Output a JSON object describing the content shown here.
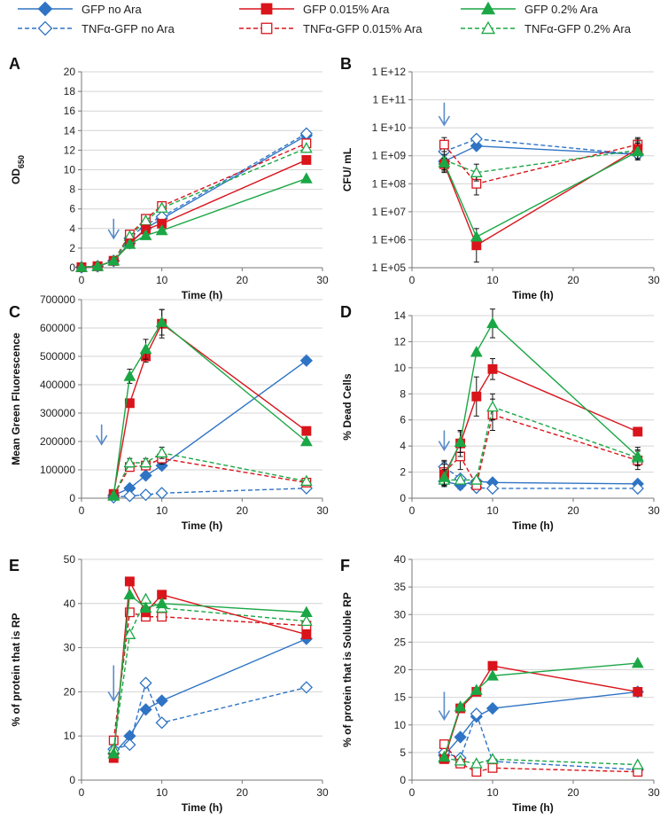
{
  "legend": [
    {
      "name": "GFP no Ara",
      "color": "#2F74C4",
      "marker": "diamond",
      "fill": true,
      "dashed": false
    },
    {
      "name": "GFP 0.015% Ara",
      "color": "#D9141B",
      "marker": "square",
      "fill": true,
      "dashed": false
    },
    {
      "name": "GFP 0.2% Ara",
      "color": "#1BA745",
      "marker": "triangle",
      "fill": true,
      "dashed": false
    },
    {
      "name": "TNFα-GFP no Ara",
      "color": "#2F74C4",
      "marker": "diamond",
      "fill": false,
      "dashed": true
    },
    {
      "name": "TNFα-GFP 0.015% Ara",
      "color": "#D9141B",
      "marker": "square",
      "fill": false,
      "dashed": true
    },
    {
      "name": "TNFα-GFP 0.2% Ara",
      "color": "#1BA745",
      "marker": "triangle",
      "fill": false,
      "dashed": true
    }
  ],
  "chart_data": [
    {
      "panel": "A",
      "type": "line",
      "xlabel": "Time (h)",
      "ylabel": "OD",
      "ylabel_sub": "650",
      "xlim": [
        0,
        30
      ],
      "xticks": [
        "0",
        "10",
        "20",
        "30"
      ],
      "ylim": [
        0,
        20
      ],
      "yticks": [
        "0",
        "2",
        "4",
        "6",
        "8",
        "10",
        "12",
        "14",
        "16",
        "18",
        "20"
      ],
      "arrow_at": {
        "x": 4,
        "y_from": 5,
        "y_to": 3
      },
      "series": [
        {
          "name": "GFP no Ara",
          "x": [
            0,
            2,
            4,
            6,
            8,
            10,
            28
          ],
          "y": [
            0.05,
            0.15,
            0.7,
            2.5,
            4.0,
            5.0,
            13.5
          ]
        },
        {
          "name": "GFP 0.015% Ara",
          "x": [
            0,
            2,
            4,
            6,
            8,
            10,
            28
          ],
          "y": [
            0.05,
            0.15,
            0.7,
            2.5,
            3.9,
            4.5,
            11.0
          ]
        },
        {
          "name": "GFP 0.2% Ara",
          "x": [
            0,
            2,
            4,
            6,
            8,
            10,
            28
          ],
          "y": [
            0.05,
            0.15,
            0.7,
            2.4,
            3.3,
            3.8,
            9.1
          ]
        },
        {
          "name": "TNFα-GFP no Ara",
          "x": [
            0,
            2,
            4,
            6,
            8,
            10,
            28
          ],
          "y": [
            0.05,
            0.15,
            0.7,
            3.0,
            4.4,
            5.2,
            13.7
          ]
        },
        {
          "name": "TNFα-GFP 0.015% Ara",
          "x": [
            0,
            2,
            4,
            6,
            8,
            10,
            28
          ],
          "y": [
            0.05,
            0.15,
            0.7,
            3.4,
            5.0,
            6.3,
            12.7
          ]
        },
        {
          "name": "TNFα-GFP 0.2% Ara",
          "x": [
            0,
            2,
            4,
            6,
            8,
            10,
            28
          ],
          "y": [
            0.05,
            0.15,
            0.7,
            3.2,
            4.8,
            6.1,
            12.2
          ]
        }
      ]
    },
    {
      "panel": "B",
      "type": "line",
      "scale": "log",
      "xlabel": "Time (h)",
      "ylabel": "CFU/ mL",
      "xlim": [
        0,
        30
      ],
      "xticks": [
        "0",
        "10",
        "20",
        "30"
      ],
      "ylim_exp": [
        5,
        12
      ],
      "yticks": [
        "1 E+05",
        "1 E+06",
        "1 E+07",
        "1 E+08",
        "1 E+09",
        "1 E+10",
        "1 E+11",
        "1 E+12"
      ],
      "arrow_at": {
        "x": 4,
        "y_from": 10.9,
        "y_to": 10.1
      },
      "series": [
        {
          "name": "GFP no Ara",
          "x": [
            4,
            8,
            28
          ],
          "y": [
            8.8,
            9.35,
            9.05
          ],
          "err": [
            0.4,
            0,
            0.1
          ]
        },
        {
          "name": "GFP 0.015% Ara",
          "x": [
            4,
            8,
            28
          ],
          "y": [
            8.7,
            5.8,
            9.25
          ],
          "err": [
            0.2,
            0.6,
            0.35
          ]
        },
        {
          "name": "GFP 0.2% Ara",
          "x": [
            4,
            8,
            28
          ],
          "y": [
            8.75,
            6.1,
            9.15
          ],
          "err": [
            0.3,
            0,
            0.3
          ]
        },
        {
          "name": "TNFα-GFP no Ara",
          "x": [
            4,
            8,
            28
          ],
          "y": [
            9.15,
            9.6,
            9.05
          ],
          "err": [
            0,
            0,
            0
          ]
        },
        {
          "name": "TNFα-GFP 0.015% Ara",
          "x": [
            4,
            8,
            28
          ],
          "y": [
            9.4,
            8.0,
            9.4
          ],
          "err": [
            0.25,
            0.4,
            0.25
          ]
        },
        {
          "name": "TNFα-GFP 0.2% Ara",
          "x": [
            4,
            8,
            28
          ],
          "y": [
            8.85,
            8.4,
            9.2
          ],
          "err": [
            0.3,
            0.3,
            0.3
          ]
        }
      ]
    },
    {
      "panel": "C",
      "type": "line",
      "xlabel": "Time (h)",
      "ylabel": "Mean Green Fluorescence",
      "xlim": [
        0,
        30
      ],
      "xticks": [
        "0",
        "10",
        "20",
        "30"
      ],
      "ylim": [
        0,
        700000
      ],
      "yticks": [
        "0",
        "100000",
        "200000",
        "300000",
        "400000",
        "500000",
        "600000",
        "700000"
      ],
      "arrow_at": {
        "x": 2.5,
        "y_from": 260000,
        "y_to": 190000
      },
      "series": [
        {
          "name": "GFP no Ara",
          "x": [
            4,
            6,
            8,
            10,
            28
          ],
          "y": [
            10000,
            35000,
            80000,
            115000,
            485000
          ],
          "err": [
            0,
            0,
            0,
            0,
            0
          ]
        },
        {
          "name": "GFP 0.015% Ara",
          "x": [
            4,
            6,
            8,
            10,
            28
          ],
          "y": [
            15000,
            335000,
            500000,
            615000,
            237000
          ],
          "err": [
            0,
            0,
            20000,
            50000,
            0
          ]
        },
        {
          "name": "GFP 0.2% Ara",
          "x": [
            4,
            6,
            8,
            10,
            28
          ],
          "y": [
            10000,
            430000,
            525000,
            620000,
            200000
          ],
          "err": [
            0,
            25000,
            35000,
            45000,
            0
          ]
        },
        {
          "name": "TNFα-GFP no Ara",
          "x": [
            4,
            6,
            8,
            10,
            28
          ],
          "y": [
            3000,
            8000,
            12000,
            18000,
            35000
          ],
          "err": [
            0,
            0,
            0,
            0,
            0
          ]
        },
        {
          "name": "TNFα-GFP 0.015% Ara",
          "x": [
            4,
            6,
            8,
            10,
            28
          ],
          "y": [
            10000,
            110000,
            115000,
            140000,
            55000
          ],
          "err": [
            0,
            15000,
            15000,
            20000,
            0
          ]
        },
        {
          "name": "TNFα-GFP 0.2% Ara",
          "x": [
            4,
            6,
            8,
            10,
            28
          ],
          "y": [
            8000,
            125000,
            125000,
            160000,
            60000
          ],
          "err": [
            0,
            15000,
            15000,
            20000,
            0
          ]
        }
      ]
    },
    {
      "panel": "D",
      "type": "line",
      "xlabel": "Time (h)",
      "ylabel": "% Dead Cells",
      "xlim": [
        0,
        30
      ],
      "xticks": [
        "0",
        "10",
        "20",
        "30"
      ],
      "ylim": [
        0,
        14
      ],
      "yticks": [
        "0",
        "2",
        "4",
        "6",
        "8",
        "10",
        "12",
        "14"
      ],
      "arrow_at": {
        "x": 4,
        "y_from": 5.2,
        "y_to": 3.7
      },
      "series": [
        {
          "name": "GFP no Ara",
          "x": [
            4,
            6,
            8,
            10,
            28
          ],
          "y": [
            1.3,
            1.0,
            1.3,
            1.2,
            1.1
          ],
          "err": [
            0.4,
            0.3,
            0.2,
            0,
            0
          ]
        },
        {
          "name": "GFP 0.015% Ara",
          "x": [
            4,
            6,
            8,
            10,
            28
          ],
          "y": [
            1.8,
            4.2,
            7.8,
            9.9,
            5.1
          ],
          "err": [
            0.8,
            1.0,
            1.5,
            0.8,
            0
          ]
        },
        {
          "name": "GFP 0.2% Ara",
          "x": [
            4,
            6,
            8,
            10,
            28
          ],
          "y": [
            1.6,
            4.3,
            11.2,
            13.4,
            3.2
          ],
          "err": [
            0.6,
            0.8,
            0,
            1.1,
            0.7
          ]
        },
        {
          "name": "TNFα-GFP no Ara",
          "x": [
            4,
            6,
            8,
            10,
            28
          ],
          "y": [
            2.4,
            1.5,
            0.8,
            0.75,
            0.75
          ],
          "err": [
            0.5,
            0,
            0,
            0,
            0
          ]
        },
        {
          "name": "TNFα-GFP 0.015% Ara",
          "x": [
            4,
            6,
            8,
            10,
            28
          ],
          "y": [
            2.0,
            3.2,
            1.0,
            6.4,
            2.9
          ],
          "err": [
            0.8,
            1.0,
            0,
            1.2,
            0.7
          ]
        },
        {
          "name": "TNFα-GFP 0.2% Ara",
          "x": [
            4,
            6,
            8,
            10,
            28
          ],
          "y": [
            1.4,
            1.4,
            1.4,
            7.0,
            3.1
          ],
          "err": [
            0.5,
            0,
            0,
            1.0,
            0.6
          ]
        }
      ]
    },
    {
      "panel": "E",
      "type": "line",
      "xlabel": "Time (h)",
      "ylabel": "% of protein that is RP",
      "xlim": [
        0,
        30
      ],
      "xticks": [
        "0",
        "10",
        "20",
        "30"
      ],
      "ylim": [
        0,
        50
      ],
      "yticks": [
        "0",
        "10",
        "20",
        "30",
        "40",
        "50"
      ],
      "arrow_at": {
        "x": 4,
        "y_from": 26,
        "y_to": 18
      },
      "series": [
        {
          "name": "GFP no Ara",
          "x": [
            4,
            6,
            8,
            10,
            28
          ],
          "y": [
            6,
            10,
            16,
            18,
            32
          ]
        },
        {
          "name": "GFP 0.015% Ara",
          "x": [
            4,
            6,
            8,
            10,
            28
          ],
          "y": [
            5,
            45,
            38,
            42,
            33
          ]
        },
        {
          "name": "GFP 0.2% Ara",
          "x": [
            4,
            6,
            8,
            10,
            28
          ],
          "y": [
            6,
            42,
            39,
            40,
            38
          ]
        },
        {
          "name": "TNFα-GFP no Ara",
          "x": [
            4,
            6,
            8,
            10,
            28
          ],
          "y": [
            7,
            8,
            22,
            13,
            21
          ]
        },
        {
          "name": "TNFα-GFP 0.015% Ara",
          "x": [
            4,
            6,
            8,
            10,
            28
          ],
          "y": [
            9,
            38,
            37,
            37,
            35
          ]
        },
        {
          "name": "TNFα-GFP 0.2% Ara",
          "x": [
            4,
            6,
            8,
            10,
            28
          ],
          "y": [
            7,
            33,
            41,
            39,
            36
          ]
        }
      ]
    },
    {
      "panel": "F",
      "type": "line",
      "xlabel": "Time (h)",
      "ylabel": "% of protein that is Soluble RP",
      "xlim": [
        0,
        30
      ],
      "xticks": [
        "0",
        "10",
        "20",
        "30"
      ],
      "ylim": [
        0,
        40
      ],
      "yticks": [
        "0",
        "5",
        "10",
        "15",
        "20",
        "25",
        "30",
        "35",
        "40"
      ],
      "arrow_at": {
        "x": 4,
        "y_from": 16,
        "y_to": 11
      },
      "series": [
        {
          "name": "GFP no Ara",
          "x": [
            4,
            6,
            8,
            10,
            28
          ],
          "y": [
            4.5,
            7.8,
            11.5,
            13.0,
            16.0
          ]
        },
        {
          "name": "GFP 0.015% Ara",
          "x": [
            4,
            6,
            8,
            10,
            28
          ],
          "y": [
            3.8,
            13.0,
            16.0,
            20.7,
            16.0
          ]
        },
        {
          "name": "GFP 0.2% Ara",
          "x": [
            4,
            6,
            8,
            10,
            28
          ],
          "y": [
            4.2,
            13.3,
            16.3,
            18.9,
            21.2
          ]
        },
        {
          "name": "TNFα-GFP no Ara",
          "x": [
            4,
            6,
            8,
            10,
            28
          ],
          "y": [
            5.0,
            4.0,
            12.0,
            3.4,
            1.9
          ]
        },
        {
          "name": "TNFα-GFP 0.015% Ara",
          "x": [
            4,
            6,
            8,
            10,
            28
          ],
          "y": [
            6.5,
            3.0,
            1.5,
            2.2,
            1.5
          ]
        },
        {
          "name": "TNFα-GFP 0.2% Ara",
          "x": [
            4,
            6,
            8,
            10,
            28
          ],
          "y": [
            4.0,
            3.5,
            3.0,
            3.8,
            2.8
          ]
        }
      ]
    }
  ]
}
